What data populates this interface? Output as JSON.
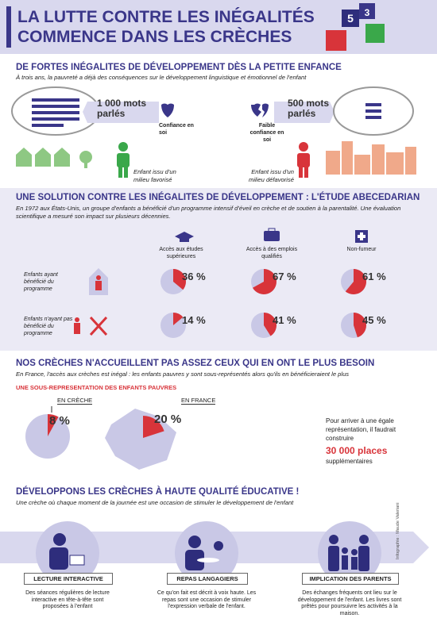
{
  "header": {
    "title_lines": [
      "LA LUTTE CONTRE LES INÉGALITÉS",
      "COMMENCE DANS LES CRÈCHES"
    ]
  },
  "section1": {
    "heading": "DE FORTES INÉGALITES DE DÉVELOPPEMENT DÈS LA PETITE ENFANCE",
    "subtitle": "À trois ans, la pauvreté a déjà des conséquences sur le développement linguistique et émotionnel de l'enfant",
    "favored": {
      "words": "1 000 mots parlés",
      "confidence": "Confiance en soi",
      "child": "Enfant issu d'un milieu favorisé"
    },
    "disadvantaged": {
      "words": "500 mots parlés",
      "confidence": "Faible confiance en soi",
      "child": "Enfant issu d'un milieu défavorisé"
    }
  },
  "section2": {
    "heading": "UNE SOLUTION CONTRE LES INÉGALITES DE DÉVELOPPEMENT : L'ÉTUDE ABECEDARIAN",
    "intro": "En 1972 aux États-Unis, un groupe d'enfants a bénéficié d'un programme intensif d'éveil en crèche et de soutien à la parentalité. Une évaluation scientifique a mesuré son impact sur plusieurs décennies.",
    "columns": [
      "Accès aux études supérieures",
      "Accès à des emplois qualifiés",
      "Non-fumeur"
    ],
    "rows": [
      {
        "label": "Enfants ayant bénéficié du programme",
        "values": [
          {
            "value": 36,
            "label": "36 %"
          },
          {
            "value": 67,
            "label": "67 %"
          },
          {
            "value": 61,
            "label": "61 %"
          }
        ]
      },
      {
        "label": "Enfants n'ayant pas bénéficié du programme",
        "values": [
          {
            "value": 14,
            "label": "14 %"
          },
          {
            "value": 41,
            "label": "41 %"
          },
          {
            "value": 45,
            "label": "45 %"
          }
        ]
      }
    ]
  },
  "section3": {
    "heading": "NOS CRÈCHES N'ACCUEILLENT PAS ASSEZ CEUX QUI EN ONT LE PLUS BESOIN",
    "intro": "En France, l'accès aux crèches est inégal : les enfants pauvres y sont sous-représentés alors qu'ils en bénéficieraient le plus",
    "subheading": "UNE SOUS-REPRESENTATION DES ENFANTS PAUVRES",
    "creche": {
      "label": "EN CRÈCHE",
      "value": 8,
      "value_label": "8 %"
    },
    "france": {
      "label": "EN FRANCE",
      "value": 20,
      "value_label": "20 %"
    },
    "note_before": "Pour arriver à une égale représentation, il faudrait construire",
    "note_highlight": "30 000 places",
    "note_after": "supplémentaires"
  },
  "section4": {
    "heading": "DÉVELOPPONS LES CRÈCHES À HAUTE QUALITÉ ÉDUCATIVE !",
    "subtitle": "Une crèche où chaque moment de la journée est une occasion de stimuler le développement de l'enfant",
    "items": [
      {
        "label": "LECTURE INTERACTIVE",
        "text": "Des séances régulières de lecture interactive en tête-à-tête sont proposées à l'enfant"
      },
      {
        "label": "REPAS LANGAGIERS",
        "text": "Ce qu'on fait est décrit à voix haute. Les repas sont une occasion de stimuler l'expression verbale de l'enfant."
      },
      {
        "label": "IMPLICATION DES PARENTS",
        "text": "Des échanges fréquents ont lieu sur le développement de l'enfant. Les livres sont prêtés pour poursuivre les activités à la maison."
      }
    ],
    "credit": "Infographie : Maude Valeriani"
  }
}
